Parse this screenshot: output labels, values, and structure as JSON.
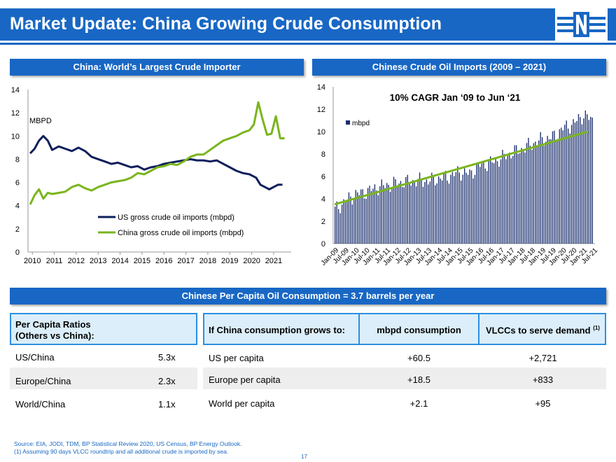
{
  "title": "Market Update: China Growing Crude Consumption",
  "colors": {
    "brand": "#1867c4",
    "navy": "#0f1f5c",
    "green": "#7ab51d",
    "bar": "#1b2f6e",
    "header_fill": "#dbeefa",
    "band": "#eeeeee"
  },
  "banners": {
    "left": "China: World’s Largest Crude Importer",
    "right": "Chinese Crude Oil Imports (2009 – 2021)",
    "middle": "Chinese Per Capita Oil Consumption = 3.7 barrels per year"
  },
  "chart_data": [
    {
      "type": "line",
      "title": "",
      "unit_label": "MBPD",
      "ylim": [
        0,
        14
      ],
      "yticks": [
        "0",
        "2",
        "4",
        "6",
        "8",
        "10",
        "12",
        "14"
      ],
      "xtick_labels": [
        "2010",
        "2011",
        "2012",
        "2013",
        "2014",
        "2015",
        "2016",
        "2017",
        "2018",
        "2019",
        "2020",
        "2021"
      ],
      "legend_position": "middle-left",
      "series": [
        {
          "name": "US gross crude oil imports (mbpd)",
          "color": "#0f1f5c",
          "x": [
            2009.9,
            2010.1,
            2010.3,
            2010.5,
            2010.7,
            2010.9,
            2011.2,
            2011.5,
            2011.8,
            2012.1,
            2012.4,
            2012.7,
            2013.0,
            2013.3,
            2013.6,
            2013.9,
            2014.2,
            2014.5,
            2014.8,
            2015.1,
            2015.4,
            2015.7,
            2016.0,
            2016.3,
            2016.6,
            2016.9,
            2017.2,
            2017.5,
            2017.8,
            2018.1,
            2018.4,
            2018.7,
            2019.0,
            2019.3,
            2019.6,
            2019.9,
            2020.2,
            2020.4,
            2020.6,
            2020.8,
            2021.0,
            2021.2,
            2021.4
          ],
          "y": [
            8.5,
            8.9,
            9.6,
            10.0,
            9.6,
            8.8,
            9.1,
            8.9,
            8.7,
            9.0,
            8.7,
            8.2,
            8.0,
            7.8,
            7.6,
            7.7,
            7.5,
            7.3,
            7.4,
            7.1,
            7.3,
            7.4,
            7.6,
            7.7,
            7.8,
            7.9,
            8.0,
            7.9,
            7.9,
            7.8,
            7.9,
            7.6,
            7.3,
            7.0,
            6.8,
            6.7,
            6.4,
            5.8,
            5.6,
            5.4,
            5.6,
            5.8,
            5.8
          ]
        },
        {
          "name": "China gross crude oil imports (mbpd)",
          "color": "#7ab51d",
          "x": [
            2009.9,
            2010.1,
            2010.3,
            2010.5,
            2010.7,
            2010.9,
            2011.2,
            2011.5,
            2011.8,
            2012.1,
            2012.4,
            2012.7,
            2013.0,
            2013.3,
            2013.6,
            2013.9,
            2014.2,
            2014.5,
            2014.8,
            2015.1,
            2015.4,
            2015.7,
            2016.0,
            2016.3,
            2016.6,
            2016.9,
            2017.2,
            2017.5,
            2017.8,
            2018.1,
            2018.4,
            2018.7,
            2019.0,
            2019.3,
            2019.6,
            2019.9,
            2020.1,
            2020.3,
            2020.5,
            2020.7,
            2020.9,
            2021.1,
            2021.3,
            2021.5
          ],
          "y": [
            4.1,
            4.9,
            5.4,
            4.6,
            5.1,
            5.0,
            5.1,
            5.2,
            5.6,
            5.8,
            5.5,
            5.3,
            5.6,
            5.8,
            6.0,
            6.1,
            6.2,
            6.4,
            6.8,
            6.7,
            7.0,
            7.3,
            7.4,
            7.6,
            7.5,
            7.8,
            8.2,
            8.4,
            8.4,
            8.8,
            9.2,
            9.6,
            9.8,
            10.0,
            10.3,
            10.5,
            11.0,
            12.9,
            11.4,
            10.1,
            10.2,
            11.7,
            9.8,
            9.8
          ]
        }
      ]
    },
    {
      "type": "bar",
      "title": "10% CAGR Jan ‘09 to Jun ‘21",
      "legend": "mbpd",
      "ylim": [
        0,
        14
      ],
      "yticks": [
        "0",
        "2",
        "4",
        "6",
        "8",
        "10",
        "12",
        "14"
      ],
      "xtick_labels": [
        "Jan-09",
        "Jul-09",
        "Jan-10",
        "Jul-10",
        "Jan-11",
        "Jul-11",
        "Jan-12",
        "Jul-12",
        "Jan-13",
        "Jul-13",
        "Jan-14",
        "Jul-14",
        "Jan-15",
        "Jul-15",
        "Jan-16",
        "Jul-16",
        "Jan-17",
        "Jul-17",
        "Jan-18",
        "Jul-18",
        "Jan-19",
        "Jul-19",
        "Jan-20",
        "Jul-20",
        "Jan-21",
        "Jul-21"
      ],
      "half_year_values": [
        3.0,
        3.8,
        4.4,
        4.6,
        5.0,
        5.2,
        5.4,
        5.5,
        5.6,
        5.6,
        5.8,
        6.0,
        6.4,
        6.2,
        7.0,
        7.2,
        7.6,
        8.1,
        8.4,
        8.9,
        9.3,
        9.5,
        10.3,
        10.7,
        11.5,
        10.9
      ],
      "trend_line": {
        "start": 3.5,
        "end": 10.0
      }
    }
  ],
  "ratios": {
    "header_line1": "Per Capita Ratios",
    "header_line2": "(Others vs China):",
    "rows": [
      {
        "label": "US/China",
        "value": "5.3x"
      },
      {
        "label": "Europe/China",
        "value": "2.3x"
      },
      {
        "label": "World/China",
        "value": "1.1x"
      }
    ]
  },
  "scenarios": {
    "col1": "If China consumption grows to:",
    "col2": "mbpd consumption",
    "col3": "VLCCs to serve demand",
    "col3_sup": "(1)",
    "rows": [
      {
        "label": "US per capita",
        "mbpd": "+60.5",
        "vlcc": "+2,721"
      },
      {
        "label": "Europe per capita",
        "mbpd": "+18.5",
        "vlcc": "+833"
      },
      {
        "label": "World per capita",
        "mbpd": "+2.1",
        "vlcc": "+95"
      }
    ]
  },
  "footnotes": {
    "source": "Source: EIA, JODI, TDM, BP Statistical Review 2020, US Census, BP Energy Outlook.",
    "note": "(1)    Assuming 90 days VLCC roundtrip and all additional crude is imported by sea."
  },
  "page_number": "17"
}
